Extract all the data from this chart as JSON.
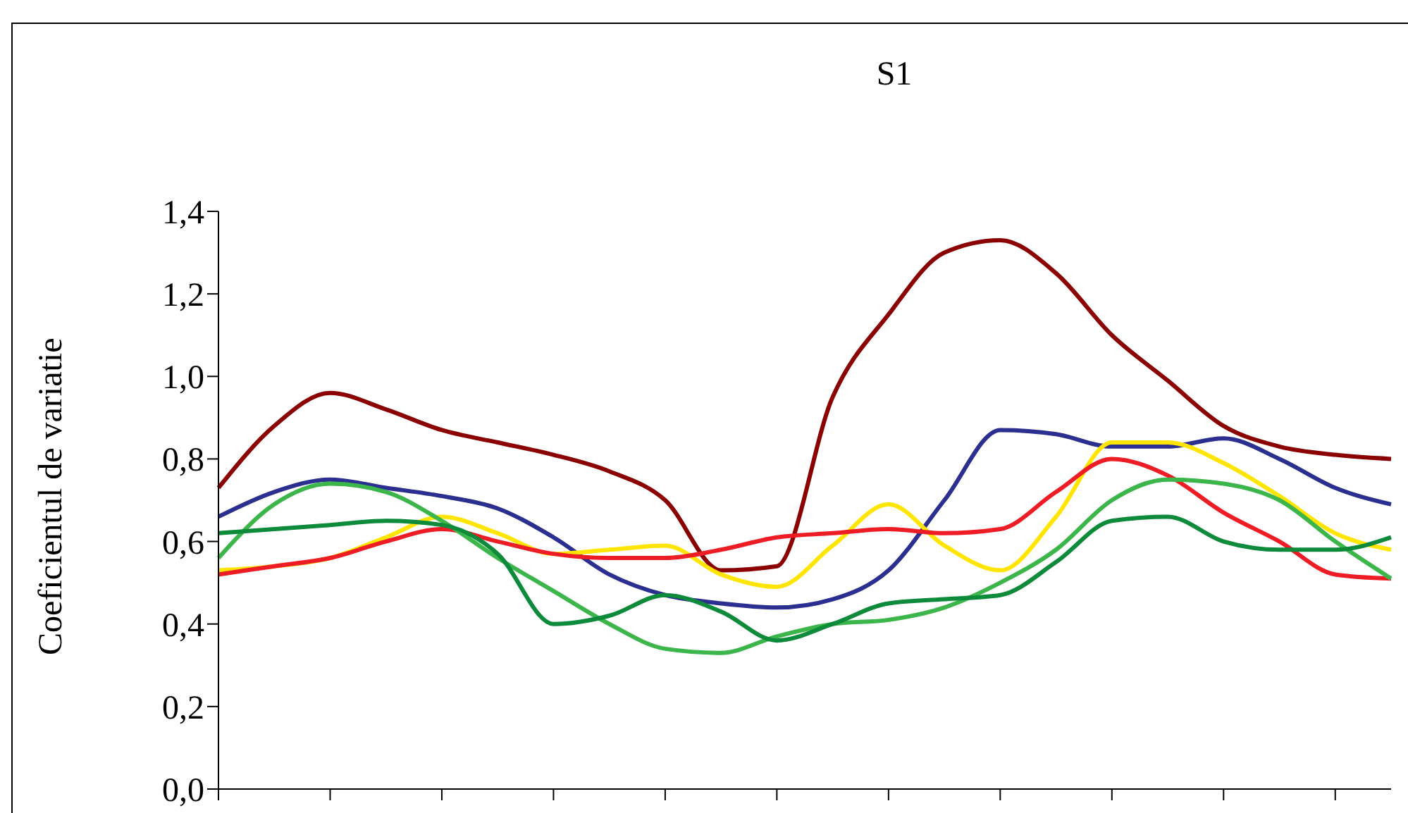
{
  "chart_data": {
    "type": "line",
    "title": "S1",
    "ylabel": "Coeficientul de variatie",
    "categories": [
      null,
      null,
      null,
      null,
      null,
      null,
      null,
      null,
      null,
      null,
      null,
      null,
      null,
      null,
      null,
      null,
      null,
      null,
      null,
      null,
      null,
      null
    ],
    "ylim": [
      0,
      1.4
    ],
    "yticks": [
      {
        "value": 0,
        "label": "0,0"
      },
      {
        "value": 0.2,
        "label": "0,2"
      },
      {
        "value": 0.4,
        "label": "0,4"
      },
      {
        "value": 0.6,
        "label": "0,6"
      },
      {
        "value": 0.8,
        "label": "0,8"
      },
      {
        "value": 1.0,
        "label": "1,0"
      },
      {
        "value": 1.2,
        "label": "1,2"
      },
      {
        "value": 1.4,
        "label": "1,4"
      }
    ],
    "legend": false,
    "marker": "none",
    "line_style": "solid",
    "tick_labels": "y",
    "series": [
      {
        "color": "#8b0000",
        "values": [
          0.73,
          0.88,
          0.96,
          0.92,
          0.87,
          0.84,
          0.81,
          0.77,
          0.7,
          0.53,
          0.54,
          0.95,
          1.15,
          1.3,
          1.33,
          1.25,
          1.1,
          0.99,
          0.88,
          0.83,
          0.81,
          0.8
        ]
      },
      {
        "color": "#2b2f8f",
        "values": [
          0.66,
          0.72,
          0.75,
          0.73,
          0.71,
          0.68,
          0.61,
          0.52,
          0.47,
          0.45,
          0.44,
          0.46,
          0.53,
          0.7,
          0.87,
          0.86,
          0.83,
          0.83,
          0.85,
          0.8,
          0.73,
          0.69
        ]
      },
      {
        "color": "#ffe500",
        "values": [
          0.53,
          0.54,
          0.56,
          0.61,
          0.66,
          0.62,
          0.57,
          0.58,
          0.59,
          0.52,
          0.49,
          0.59,
          0.69,
          0.59,
          0.53,
          0.66,
          0.84,
          0.84,
          0.79,
          0.71,
          0.62,
          0.58
        ]
      },
      {
        "color": "#ee1c24",
        "values": [
          0.52,
          0.54,
          0.56,
          0.6,
          0.63,
          0.6,
          0.57,
          0.56,
          0.56,
          0.58,
          0.61,
          0.62,
          0.63,
          0.62,
          0.63,
          0.72,
          0.8,
          0.76,
          0.67,
          0.6,
          0.52,
          0.51
        ]
      },
      {
        "color": "#3cb64a",
        "values": [
          0.56,
          0.69,
          0.74,
          0.72,
          0.65,
          0.56,
          0.48,
          0.4,
          0.34,
          0.33,
          0.37,
          0.4,
          0.41,
          0.44,
          0.5,
          0.58,
          0.7,
          0.75,
          0.74,
          0.7,
          0.6,
          0.51
        ]
      },
      {
        "color": "#0d8a3a",
        "values": [
          0.62,
          0.63,
          0.64,
          0.65,
          0.64,
          0.57,
          0.4,
          0.42,
          0.47,
          0.43,
          0.36,
          0.4,
          0.45,
          0.46,
          0.47,
          0.55,
          0.65,
          0.66,
          0.6,
          0.58,
          0.58,
          0.61
        ]
      }
    ]
  }
}
